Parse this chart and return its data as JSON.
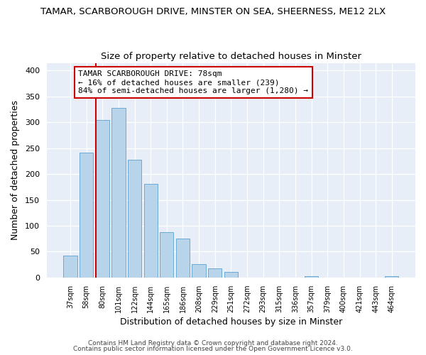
{
  "title": "TAMAR, SCARBOROUGH DRIVE, MINSTER ON SEA, SHEERNESS, ME12 2LX",
  "subtitle": "Size of property relative to detached houses in Minster",
  "xlabel": "Distribution of detached houses by size in Minster",
  "ylabel": "Number of detached properties",
  "bar_labels": [
    "37sqm",
    "58sqm",
    "80sqm",
    "101sqm",
    "122sqm",
    "144sqm",
    "165sqm",
    "186sqm",
    "208sqm",
    "229sqm",
    "251sqm",
    "272sqm",
    "293sqm",
    "315sqm",
    "336sqm",
    "357sqm",
    "379sqm",
    "400sqm",
    "421sqm",
    "443sqm",
    "464sqm"
  ],
  "bar_values": [
    42,
    241,
    305,
    328,
    228,
    181,
    88,
    75,
    26,
    18,
    11,
    0,
    0,
    0,
    0,
    3,
    0,
    0,
    0,
    0,
    3
  ],
  "bar_color": "#b8d4ea",
  "bar_edge_color": "#6aaad4",
  "vline_x_idx": 2,
  "vline_color": "#cc0000",
  "annotation_text": "TAMAR SCARBOROUGH DRIVE: 78sqm\n← 16% of detached houses are smaller (239)\n84% of semi-detached houses are larger (1,280) →",
  "annotation_box_color": "#ffffff",
  "annotation_box_edge": "#cc0000",
  "ylim": [
    0,
    415
  ],
  "yticks": [
    0,
    50,
    100,
    150,
    200,
    250,
    300,
    350,
    400
  ],
  "footer1": "Contains HM Land Registry data © Crown copyright and database right 2024.",
  "footer2": "Contains public sector information licensed under the Open Government Licence v3.0.",
  "bg_color": "#ffffff",
  "plot_bg_color": "#e8eef8",
  "title_fontsize": 9.5,
  "subtitle_fontsize": 9.5
}
